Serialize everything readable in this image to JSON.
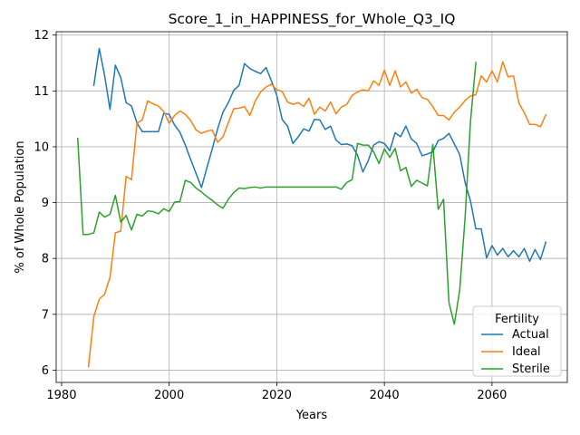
{
  "chart_data": {
    "type": "line",
    "title": "Score_1_in_HAPPINESS_for_Whole_Q3_IQ",
    "xlabel": "Years",
    "ylabel": "% of Whole Population",
    "xlim": [
      1979,
      2074
    ],
    "ylim": [
      5.78,
      12.06
    ],
    "xticks": [
      1980,
      2000,
      2020,
      2040,
      2060
    ],
    "yticks": [
      6,
      7,
      8,
      9,
      10,
      11,
      12
    ],
    "grid": true,
    "legend": {
      "title": "Fertility",
      "placement": "lower-right"
    },
    "series": [
      {
        "name": "Actual",
        "color": "#1f77b4",
        "x": [
          1986,
          1987,
          1988,
          1989,
          1990,
          1991,
          1992,
          1993,
          1994,
          1995,
          1996,
          1997,
          1998,
          1999,
          2000,
          2001,
          2002,
          2003,
          2004,
          2005,
          2006,
          2007,
          2008,
          2009,
          2010,
          2011,
          2012,
          2013,
          2014,
          2015,
          2016,
          2017,
          2018,
          2019,
          2020,
          2021,
          2022,
          2023,
          2024,
          2025,
          2026,
          2027,
          2028,
          2029,
          2030,
          2031,
          2032,
          2033,
          2034,
          2035,
          2036,
          2037,
          2038,
          2039,
          2040,
          2041,
          2042,
          2043,
          2044,
          2045,
          2046,
          2047,
          2048,
          2049,
          2050,
          2051,
          2052,
          2053,
          2054,
          2055,
          2056,
          2057,
          2058,
          2059,
          2060,
          2061,
          2062,
          2063,
          2064,
          2065,
          2066,
          2067,
          2068,
          2069,
          2070
        ],
        "y": [
          11.1,
          11.76,
          11.28,
          10.67,
          11.46,
          11.24,
          10.79,
          10.73,
          10.43,
          10.27,
          10.27,
          10.27,
          10.27,
          10.6,
          10.58,
          10.39,
          10.26,
          10.03,
          9.77,
          9.52,
          9.27,
          9.62,
          9.96,
          10.32,
          10.62,
          10.79,
          11.01,
          11.1,
          11.49,
          11.4,
          11.35,
          11.31,
          11.42,
          11.18,
          10.92,
          10.49,
          10.37,
          10.06,
          10.18,
          10.32,
          10.28,
          10.49,
          10.48,
          10.31,
          10.37,
          10.12,
          10.04,
          10.05,
          10.02,
          9.85,
          9.55,
          9.75,
          10.03,
          10.09,
          10.06,
          9.93,
          10.25,
          10.18,
          10.37,
          10.14,
          10.06,
          9.84,
          9.87,
          9.91,
          10.11,
          10.15,
          10.24,
          10.05,
          9.86,
          9.36,
          9.03,
          8.53,
          8.53,
          8.01,
          8.23,
          8.06,
          8.18,
          8.03,
          8.14,
          8.03,
          8.18,
          7.95,
          8.16,
          7.98,
          8.29
        ]
      },
      {
        "name": "Ideal",
        "color": "#ff7f0e",
        "x": [
          1985,
          1986,
          1987,
          1988,
          1989,
          1990,
          1991,
          1992,
          1993,
          1994,
          1995,
          1996,
          1997,
          1998,
          1999,
          2000,
          2001,
          2002,
          2003,
          2004,
          2005,
          2006,
          2007,
          2008,
          2009,
          2010,
          2011,
          2012,
          2013,
          2014,
          2015,
          2016,
          2017,
          2018,
          2019,
          2020,
          2021,
          2022,
          2023,
          2024,
          2025,
          2026,
          2027,
          2028,
          2029,
          2030,
          2031,
          2032,
          2033,
          2034,
          2035,
          2036,
          2037,
          2038,
          2039,
          2040,
          2041,
          2042,
          2043,
          2044,
          2045,
          2046,
          2047,
          2048,
          2049,
          2050,
          2051,
          2052,
          2053,
          2054,
          2055,
          2056,
          2057,
          2058,
          2059,
          2060,
          2061,
          2062,
          2063,
          2064,
          2065,
          2066,
          2067,
          2068,
          2069,
          2070
        ],
        "y": [
          6.06,
          6.96,
          7.27,
          7.36,
          7.66,
          8.46,
          8.49,
          9.47,
          9.41,
          10.42,
          10.48,
          10.82,
          10.77,
          10.73,
          10.63,
          10.42,
          10.56,
          10.64,
          10.58,
          10.47,
          10.3,
          10.24,
          10.28,
          10.3,
          10.08,
          10.18,
          10.43,
          10.68,
          10.69,
          10.72,
          10.56,
          10.82,
          10.98,
          11.07,
          11.12,
          11.02,
          10.99,
          10.8,
          10.76,
          10.79,
          10.72,
          10.87,
          10.58,
          10.71,
          10.64,
          10.8,
          10.59,
          10.71,
          10.76,
          10.92,
          10.98,
          11.02,
          11.0,
          11.18,
          11.1,
          11.37,
          11.1,
          11.36,
          11.07,
          11.16,
          10.96,
          11.03,
          10.88,
          10.85,
          10.72,
          10.56,
          10.56,
          10.48,
          10.62,
          10.71,
          10.83,
          10.91,
          10.93,
          11.27,
          11.16,
          11.36,
          11.16,
          11.52,
          11.25,
          11.27,
          10.78,
          10.61,
          10.4,
          10.4,
          10.36,
          10.57
        ]
      },
      {
        "name": "Sterile",
        "color": "#2ca02c",
        "x": [
          1983,
          1984,
          1985,
          1986,
          1987,
          1988,
          1989,
          1990,
          1991,
          1992,
          1993,
          1994,
          1995,
          1996,
          1997,
          1998,
          1999,
          2000,
          2001,
          2002,
          2003,
          2004,
          2005,
          2006,
          2007,
          2008,
          2009,
          2010,
          2011,
          2012,
          2013,
          2014,
          2015,
          2016,
          2017,
          2018,
          2019,
          2020,
          2021,
          2022,
          2023,
          2024,
          2025,
          2026,
          2027,
          2028,
          2029,
          2030,
          2031,
          2032,
          2033,
          2034,
          2035,
          2036,
          2037,
          2038,
          2039,
          2040,
          2041,
          2042,
          2043,
          2044,
          2045,
          2046,
          2047,
          2048,
          2049,
          2050,
          2051,
          2052,
          2053,
          2054,
          2055,
          2056,
          2057
        ],
        "y": [
          10.15,
          8.43,
          8.43,
          8.46,
          8.83,
          8.74,
          8.79,
          9.13,
          8.65,
          8.77,
          8.51,
          8.79,
          8.76,
          8.85,
          8.84,
          8.8,
          8.89,
          8.84,
          9.01,
          9.02,
          9.4,
          9.36,
          9.26,
          9.19,
          9.11,
          9.04,
          8.96,
          8.9,
          9.06,
          9.18,
          9.26,
          9.25,
          9.27,
          9.28,
          9.26,
          9.28,
          9.28,
          9.28,
          9.28,
          9.28,
          9.28,
          9.28,
          9.28,
          9.28,
          9.28,
          9.28,
          9.28,
          9.28,
          9.28,
          9.24,
          9.36,
          9.41,
          10.06,
          10.03,
          10.03,
          9.91,
          9.7,
          9.96,
          9.81,
          9.97,
          9.57,
          9.63,
          9.29,
          9.4,
          9.35,
          9.3,
          10.04,
          8.88,
          9.06,
          7.21,
          6.82,
          7.43,
          8.73,
          10.45,
          11.51
        ]
      }
    ]
  }
}
